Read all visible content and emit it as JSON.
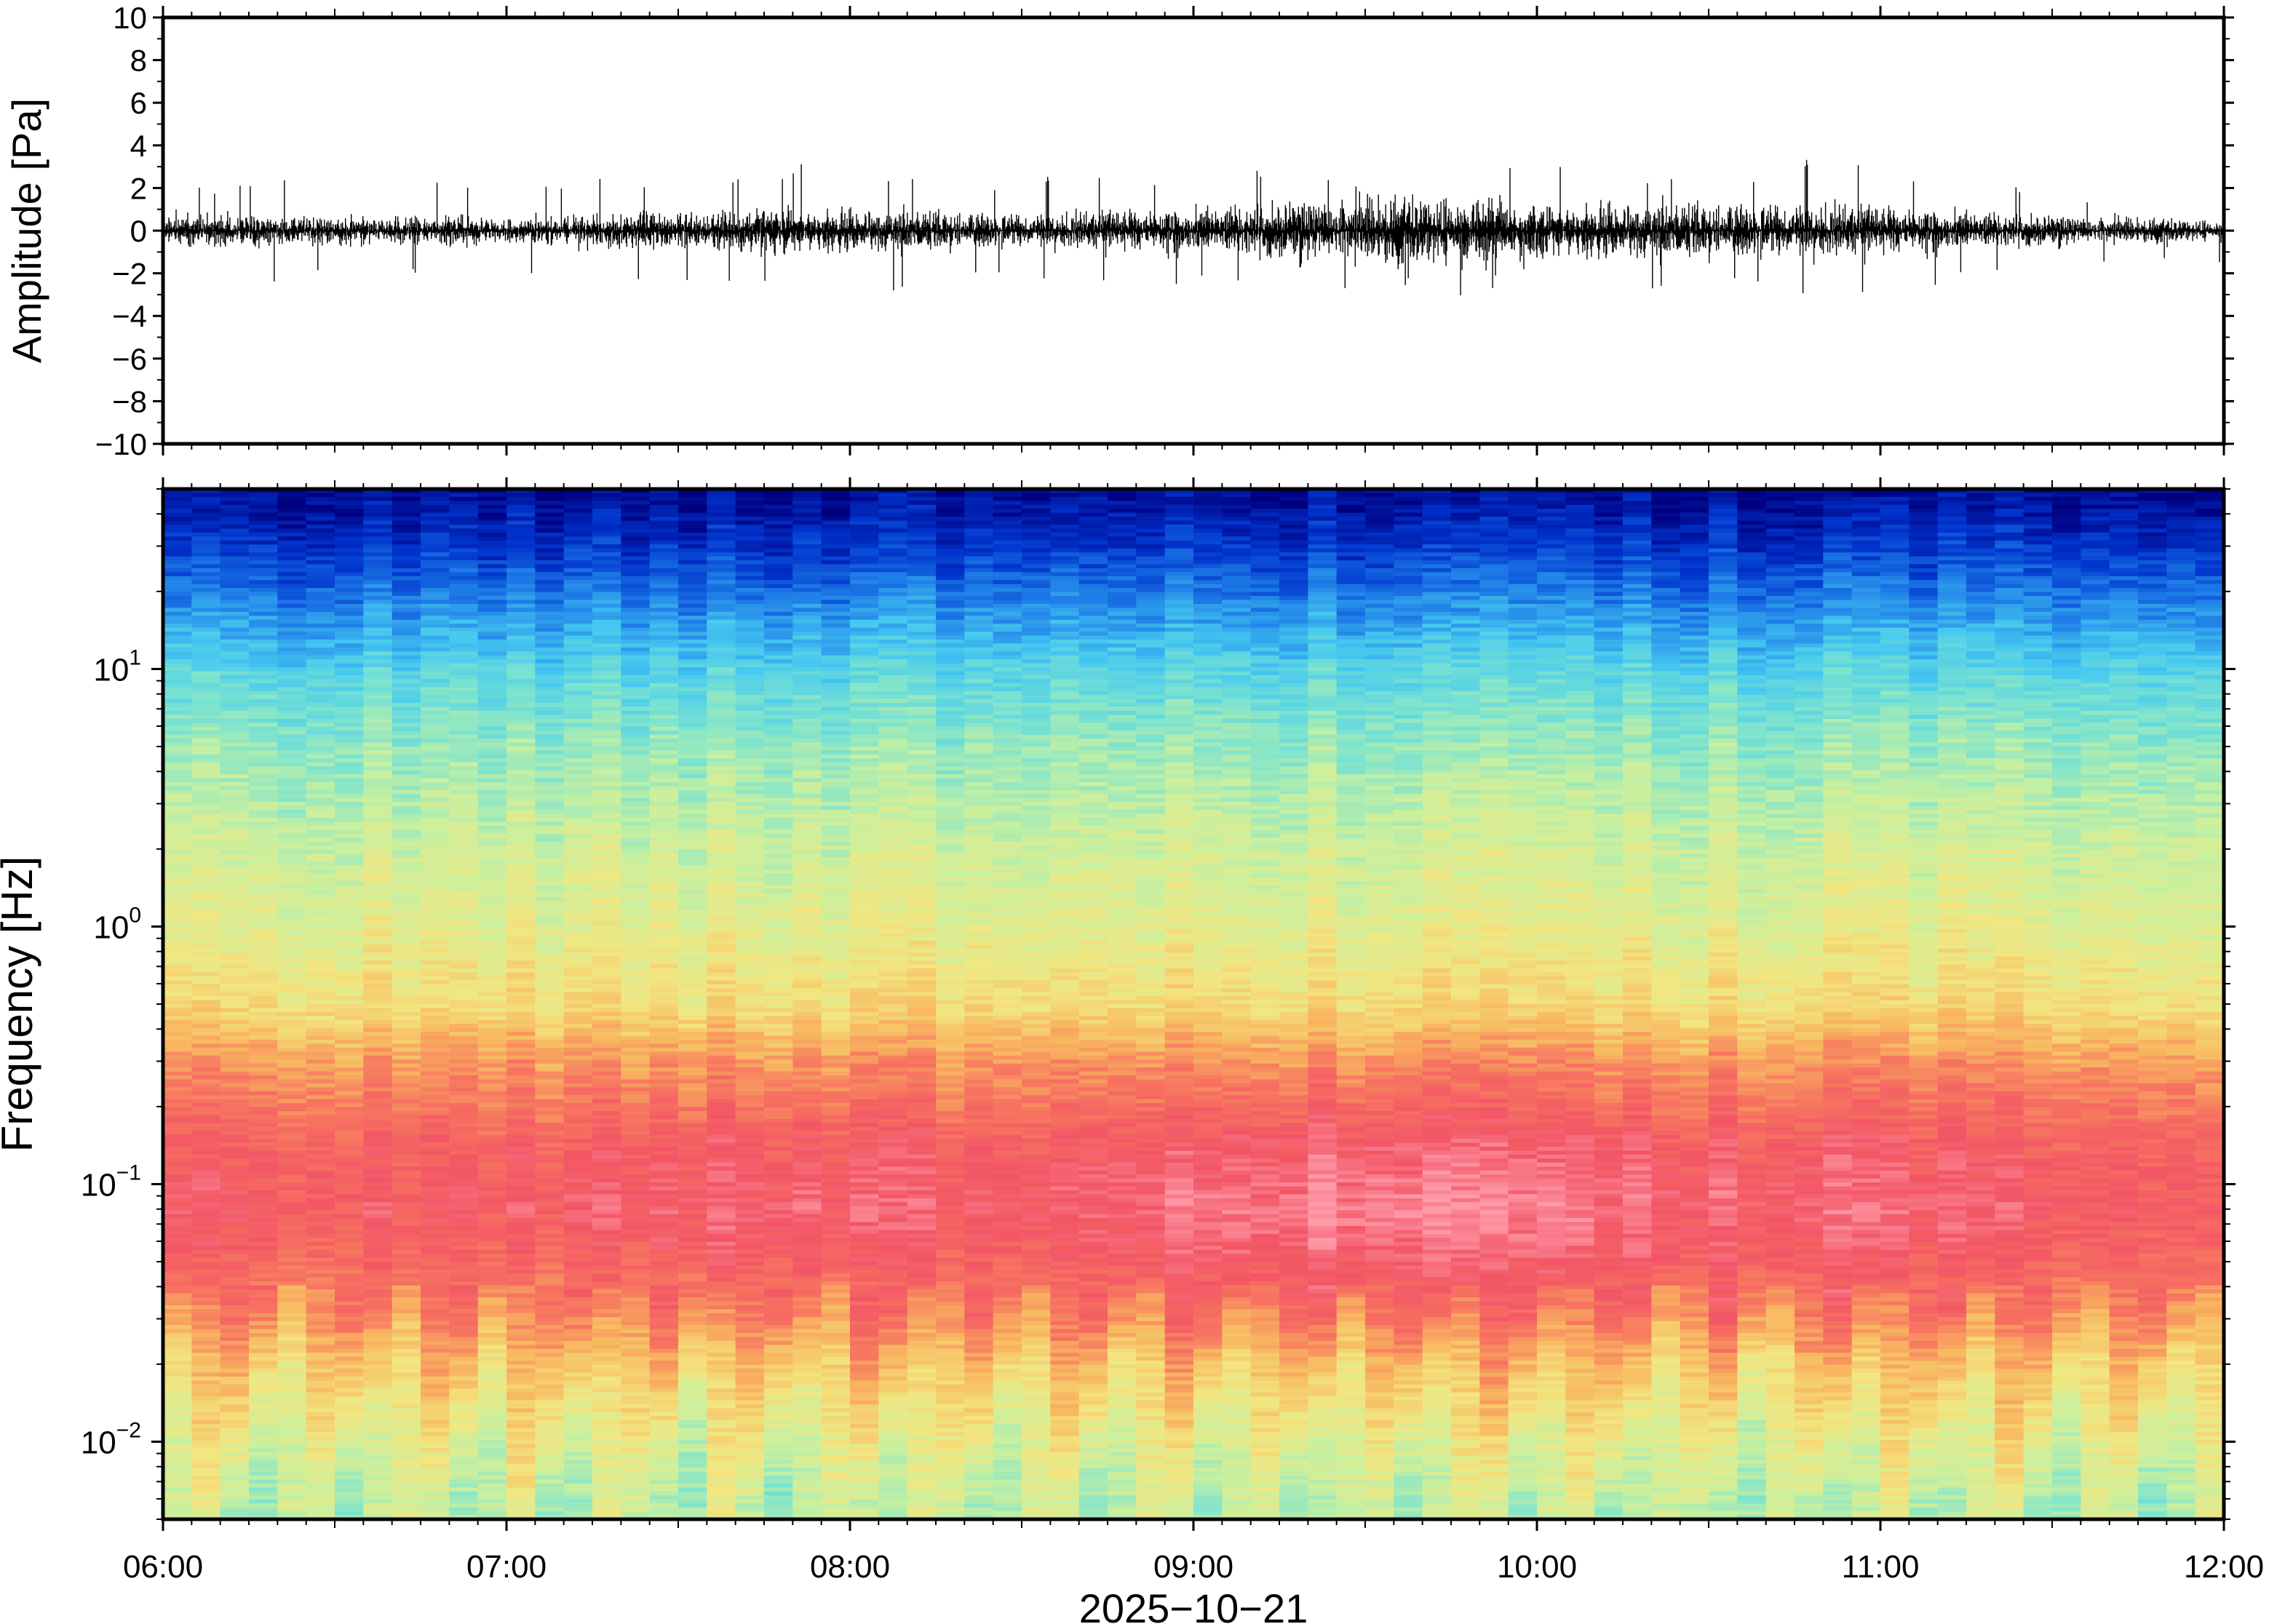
{
  "figure": {
    "date_label": "2025−10−21"
  },
  "chart_data": [
    {
      "type": "line",
      "panel": "waveform",
      "ylabel": "Amplitude [Pa]",
      "ylim": [
        -10,
        10
      ],
      "yticks": [
        10,
        8,
        6,
        4,
        2,
        0,
        -2,
        -4,
        -6,
        -8,
        -10
      ],
      "ytick_labels": [
        "10",
        "8",
        "6",
        "4",
        "2",
        "0",
        "−2",
        "−4",
        "−6",
        "−8",
        "−10"
      ],
      "xlim": [
        "06:00",
        "12:00"
      ],
      "line_color": "#000000",
      "envelope": {
        "time": [
          "06:00",
          "06:30",
          "07:00",
          "07:30",
          "07:45",
          "08:00",
          "08:30",
          "09:00",
          "09:15",
          "09:30",
          "09:45",
          "10:00",
          "10:30",
          "10:50",
          "11:00",
          "11:30",
          "12:00"
        ],
        "amplitude_typical_pa": [
          1.0,
          0.8,
          0.8,
          1.1,
          1.4,
          1.3,
          1.0,
          1.3,
          1.7,
          2.0,
          2.0,
          1.7,
          1.6,
          1.6,
          1.4,
          0.9,
          0.6
        ],
        "amplitude_peak_pa": [
          2.5,
          2.4,
          2.2,
          2.7,
          3.0,
          3.3,
          2.5,
          2.8,
          3.2,
          3.5,
          3.1,
          3.0,
          3.0,
          3.4,
          3.2,
          2.0,
          1.5
        ]
      }
    },
    {
      "type": "heatmap",
      "panel": "spectrogram",
      "ylabel": "Frequency [Hz]",
      "yscale": "log",
      "ylim": [
        0.005,
        50
      ],
      "yticks": [
        0.01,
        0.1,
        1,
        10
      ],
      "ytick_labels": [
        {
          "base": "10",
          "exp": "−2"
        },
        {
          "base": "10",
          "exp": "−1"
        },
        {
          "base": "10",
          "exp": "0"
        },
        {
          "base": "10",
          "exp": "1"
        }
      ],
      "xlim": [
        "06:00",
        "12:00"
      ],
      "xticks": [
        "06:00",
        "07:00",
        "08:00",
        "09:00",
        "10:00",
        "11:00",
        "12:00"
      ],
      "colormap": [
        "#00007f",
        "#0033cc",
        "#1f7fe8",
        "#45c8f0",
        "#7be3d0",
        "#c8f0a0",
        "#f2e680",
        "#f8b860",
        "#f77560",
        "#f25565",
        "#ff9aa8"
      ],
      "colormap_note": "blue = low power, red/pink = high power",
      "power_profile": {
        "frequency_hz": [
          50,
          30,
          15,
          10,
          5,
          2,
          1,
          0.5,
          0.3,
          0.15,
          0.08,
          0.05,
          0.03,
          0.02,
          0.01,
          0.006
        ],
        "relative_power": [
          0.02,
          0.1,
          0.25,
          0.34,
          0.44,
          0.52,
          0.56,
          0.62,
          0.74,
          0.83,
          0.86,
          0.82,
          0.75,
          0.66,
          0.56,
          0.5
        ]
      },
      "activity_modulation": {
        "time": [
          "06:00",
          "07:00",
          "07:45",
          "08:00",
          "08:30",
          "09:00",
          "09:30",
          "10:00",
          "10:30",
          "11:00",
          "11:30",
          "12:00"
        ],
        "relative_gain": [
          0.3,
          0.2,
          0.6,
          0.5,
          0.3,
          0.75,
          1.0,
          0.8,
          0.55,
          0.6,
          0.3,
          0.2
        ]
      }
    }
  ]
}
